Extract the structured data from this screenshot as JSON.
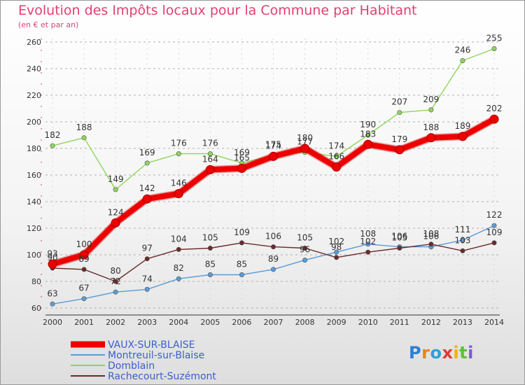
{
  "title": "Evolution des Impôts locaux pour la Commune par Habitant",
  "subtitle": "(en € et par an)",
  "brand": "Proxiti",
  "chart_data": {
    "type": "line",
    "title": "Evolution des Impôts locaux pour la Commune par Habitant",
    "subtitle": "(en € et par an)",
    "xlabel": "",
    "ylabel": "",
    "x": [
      "2000",
      "2001",
      "2002",
      "2003",
      "2004",
      "2005",
      "2006",
      "2007",
      "2008",
      "2009",
      "2010",
      "2011",
      "2012",
      "2013",
      "2014"
    ],
    "ylim": [
      60,
      260
    ],
    "yticks": [
      "60",
      "80",
      "100",
      "120",
      "140",
      "160",
      "180",
      "200",
      "220",
      "240",
      "260"
    ],
    "grid": "horizontal dashed",
    "legend_position": "bottom",
    "series": [
      {
        "name": "VAUX-SUR-BLAISE",
        "color": "#ee0000",
        "values": [
          93,
          100,
          124,
          142,
          146,
          164,
          165,
          174,
          180,
          166,
          183,
          179,
          188,
          189,
          202
        ]
      },
      {
        "name": "Montreuil-sur-Blaise",
        "color": "#5b9bd5",
        "values": [
          63,
          67,
          72,
          74,
          82,
          85,
          85,
          89,
          96,
          102,
          108,
          106,
          106,
          111,
          122
        ]
      },
      {
        "name": "Domblain",
        "color": "#8ed65a",
        "values": [
          182,
          188,
          149,
          169,
          176,
          176,
          169,
          175,
          177,
          174,
          190,
          207,
          209,
          246,
          255
        ]
      },
      {
        "name": "Rachecourt-Suzémont",
        "color": "#6b2a2a",
        "values": [
          90,
          89,
          80,
          97,
          104,
          105,
          109,
          106,
          105,
          98,
          102,
          105,
          108,
          103,
          109
        ]
      }
    ]
  }
}
